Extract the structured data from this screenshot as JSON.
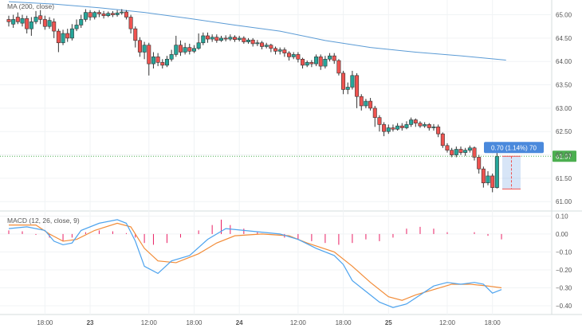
{
  "indicators": {
    "ma_label": "MA (200, close)",
    "macd_label": "MACD (12, 26, close, 9)"
  },
  "price_axis_ticks": [
    "65.00",
    "64.50",
    "64.00",
    "63.50",
    "63.00",
    "62.50",
    "62.00",
    "61.50",
    "61.00"
  ],
  "macd_axis_ticks": [
    "0.10",
    "0.00",
    "−0.10",
    "−0.20",
    "−0.30",
    "−0.40"
  ],
  "time_axis_ticks": [
    "18:00",
    "23",
    "12:00",
    "18:00",
    "24",
    "12:00",
    "18:00",
    "25",
    "12:00",
    "18:00"
  ],
  "last_price_badge": "61.97",
  "measure_label": "0.70 (1.14%) 70",
  "colors": {
    "up": "#26a69a",
    "down": "#ef5350",
    "candle_border": "#333333",
    "ma_line": "#5b9bd5",
    "macd_line": "#4da3ee",
    "signal_line": "#f28c38",
    "histogram": "#e91e63",
    "last_price": "#4caf50",
    "measure": "#4a89dc"
  },
  "chart_data": [
    {
      "type": "candlestick",
      "title": "MA (200, close)",
      "ylim": [
        60.85,
        65.18
      ],
      "x_ticks": [
        "18:00",
        "23",
        "12:00",
        "18:00",
        "24",
        "12:00",
        "18:00",
        "25",
        "12:00",
        "18:00"
      ],
      "x_tick_index": [
        8,
        18,
        31,
        41,
        51,
        64,
        74,
        84,
        97,
        107
      ],
      "candles": [
        [
          64.9,
          64.85,
          64.98,
          64.75
        ],
        [
          64.8,
          64.9,
          65.0,
          64.72
        ],
        [
          64.95,
          64.85,
          65.05,
          64.8
        ],
        [
          64.82,
          64.92,
          65.0,
          64.75
        ],
        [
          64.92,
          64.7,
          64.98,
          64.6
        ],
        [
          64.7,
          64.85,
          64.95,
          64.55
        ],
        [
          64.85,
          64.95,
          65.08,
          64.8
        ],
        [
          64.98,
          64.9,
          65.1,
          64.8
        ],
        [
          64.9,
          64.75,
          64.98,
          64.68
        ],
        [
          64.75,
          64.88,
          64.95,
          64.7
        ],
        [
          64.85,
          64.65,
          64.92,
          64.5
        ],
        [
          64.65,
          64.4,
          64.7,
          64.2
        ],
        [
          64.4,
          64.6,
          64.68,
          64.35
        ],
        [
          64.6,
          64.5,
          64.7,
          64.42
        ],
        [
          64.5,
          64.7,
          64.8,
          64.45
        ],
        [
          64.7,
          64.78,
          64.9,
          64.65
        ],
        [
          64.78,
          64.9,
          65.0,
          64.72
        ],
        [
          64.9,
          65.05,
          65.12,
          64.85
        ],
        [
          65.05,
          64.95,
          65.1,
          64.88
        ],
        [
          64.95,
          65.05,
          65.08,
          64.9
        ],
        [
          65.05,
          65.02,
          65.1,
          64.95
        ],
        [
          65.02,
          64.98,
          65.08,
          64.92
        ],
        [
          64.98,
          65.03,
          65.07,
          64.95
        ],
        [
          65.03,
          65.0,
          65.08,
          64.95
        ],
        [
          65.0,
          65.04,
          65.1,
          64.96
        ],
        [
          65.04,
          65.06,
          65.12,
          65.0
        ],
        [
          65.06,
          64.95,
          65.1,
          64.9
        ],
        [
          64.95,
          64.7,
          65.0,
          64.6
        ],
        [
          64.7,
          64.45,
          64.75,
          64.3
        ],
        [
          64.45,
          64.2,
          64.52,
          64.1
        ],
        [
          64.2,
          64.35,
          64.42,
          64.05
        ],
        [
          64.35,
          63.95,
          64.4,
          63.7
        ],
        [
          63.95,
          64.1,
          64.2,
          63.85
        ],
        [
          64.1,
          63.98,
          64.18,
          63.9
        ],
        [
          63.98,
          63.92,
          64.05,
          63.85
        ],
        [
          63.92,
          64.05,
          64.12,
          63.88
        ],
        [
          64.05,
          64.15,
          64.25,
          64.0
        ],
        [
          64.15,
          64.35,
          64.55,
          64.1
        ],
        [
          64.35,
          64.2,
          64.45,
          64.12
        ],
        [
          64.2,
          64.3,
          64.4,
          64.15
        ],
        [
          64.3,
          64.22,
          64.38,
          64.15
        ],
        [
          64.22,
          64.28,
          64.35,
          64.18
        ],
        [
          64.28,
          64.4,
          64.6,
          64.25
        ],
        [
          64.4,
          64.55,
          64.62,
          64.35
        ],
        [
          64.55,
          64.48,
          64.62,
          64.4
        ],
        [
          64.48,
          64.52,
          64.58,
          64.42
        ],
        [
          64.52,
          64.45,
          64.58,
          64.4
        ],
        [
          64.45,
          64.5,
          64.55,
          64.42
        ],
        [
          64.5,
          64.48,
          64.56,
          64.43
        ],
        [
          64.48,
          64.52,
          64.58,
          64.44
        ],
        [
          64.52,
          64.47,
          64.56,
          64.42
        ],
        [
          64.47,
          64.5,
          64.55,
          64.43
        ],
        [
          64.5,
          64.42,
          64.54,
          64.38
        ],
        [
          64.42,
          64.46,
          64.5,
          64.38
        ],
        [
          64.46,
          64.38,
          64.5,
          64.32
        ],
        [
          64.38,
          64.4,
          64.46,
          64.33
        ],
        [
          64.4,
          64.32,
          64.44,
          64.26
        ],
        [
          64.32,
          64.35,
          64.4,
          64.28
        ],
        [
          64.35,
          64.28,
          64.38,
          64.2
        ],
        [
          64.28,
          64.22,
          64.32,
          64.15
        ],
        [
          64.22,
          64.25,
          64.3,
          64.15
        ],
        [
          64.25,
          64.18,
          64.3,
          64.1
        ],
        [
          64.18,
          64.1,
          64.22,
          64.02
        ],
        [
          64.1,
          64.15,
          64.2,
          64.05
        ],
        [
          64.15,
          64.05,
          64.2,
          63.98
        ],
        [
          64.05,
          63.92,
          64.08,
          63.85
        ],
        [
          63.92,
          63.98,
          64.02,
          63.88
        ],
        [
          63.98,
          63.95,
          64.03,
          63.88
        ],
        [
          63.95,
          64.1,
          64.15,
          63.9
        ],
        [
          64.1,
          63.9,
          64.15,
          63.82
        ],
        [
          63.9,
          64.05,
          64.12,
          63.85
        ],
        [
          64.05,
          64.12,
          64.18,
          64.0
        ],
        [
          64.12,
          64.02,
          64.18,
          63.95
        ],
        [
          64.02,
          63.75,
          64.05,
          63.7
        ],
        [
          63.75,
          63.4,
          63.8,
          63.3
        ],
        [
          63.4,
          63.45,
          63.55,
          63.3
        ],
        [
          63.45,
          63.7,
          63.8,
          63.4
        ],
        [
          63.7,
          63.25,
          63.75,
          63.0
        ],
        [
          63.25,
          63.05,
          63.3,
          62.95
        ],
        [
          63.05,
          63.15,
          63.2,
          63.0
        ],
        [
          63.15,
          63.0,
          63.22,
          62.95
        ],
        [
          63.0,
          62.8,
          63.05,
          62.6
        ],
        [
          62.8,
          62.65,
          62.85,
          62.5
        ],
        [
          62.65,
          62.5,
          62.7,
          62.4
        ],
        [
          62.5,
          62.58,
          62.65,
          62.45
        ],
        [
          62.58,
          62.55,
          62.65,
          62.5
        ],
        [
          62.55,
          62.62,
          62.68,
          62.52
        ],
        [
          62.62,
          62.58,
          62.68,
          62.52
        ],
        [
          62.58,
          62.65,
          62.72,
          62.55
        ],
        [
          62.65,
          62.75,
          62.8,
          62.6
        ],
        [
          62.75,
          62.68,
          62.78,
          62.6
        ],
        [
          62.68,
          62.62,
          62.72,
          62.58
        ],
        [
          62.62,
          62.65,
          62.7,
          62.58
        ],
        [
          62.65,
          62.58,
          62.68,
          62.52
        ],
        [
          62.58,
          62.6,
          62.66,
          62.52
        ],
        [
          62.6,
          62.45,
          62.65,
          62.38
        ],
        [
          62.45,
          62.2,
          62.48,
          62.15
        ],
        [
          62.2,
          62.1,
          62.25,
          62.05
        ],
        [
          62.1,
          62.0,
          62.15,
          61.95
        ],
        [
          62.0,
          62.12,
          62.18,
          61.95
        ],
        [
          62.12,
          62.05,
          62.18,
          62.0
        ],
        [
          62.05,
          62.1,
          62.15,
          61.98
        ],
        [
          62.1,
          62.15,
          62.2,
          62.05
        ],
        [
          62.15,
          61.95,
          62.18,
          61.88
        ],
        [
          61.95,
          61.7,
          62.0,
          61.6
        ],
        [
          61.7,
          61.4,
          61.75,
          61.3
        ],
        [
          61.4,
          61.55,
          61.65,
          61.35
        ],
        [
          61.55,
          61.3,
          61.6,
          61.2
        ],
        [
          61.3,
          61.97,
          62.05,
          61.28
        ]
      ],
      "ma": [
        [
          0,
          65.28
        ],
        [
          10,
          65.23
        ],
        [
          20,
          65.15
        ],
        [
          30,
          65.05
        ],
        [
          40,
          64.92
        ],
        [
          50,
          64.78
        ],
        [
          60,
          64.65
        ],
        [
          70,
          64.45
        ],
        [
          80,
          64.3
        ],
        [
          90,
          64.2
        ],
        [
          100,
          64.12
        ],
        [
          110,
          64.03
        ]
      ],
      "last_price": 61.97,
      "measure": {
        "from": 61.27,
        "to": 61.97,
        "change": 0.7,
        "percent": 1.14,
        "bars": 70
      }
    },
    {
      "type": "macd",
      "title": "MACD (12, 26, close, 9)",
      "ylim": [
        -0.44,
        0.115
      ],
      "macd": [
        [
          0,
          0.03
        ],
        [
          4,
          0.04
        ],
        [
          8,
          0.02
        ],
        [
          10,
          -0.04
        ],
        [
          12,
          -0.06
        ],
        [
          14,
          -0.05
        ],
        [
          16,
          0.02
        ],
        [
          20,
          0.06
        ],
        [
          24,
          0.08
        ],
        [
          26,
          0.06
        ],
        [
          28,
          -0.04
        ],
        [
          30,
          -0.18
        ],
        [
          33,
          -0.22
        ],
        [
          36,
          -0.15
        ],
        [
          40,
          -0.12
        ],
        [
          44,
          -0.03
        ],
        [
          48,
          0.03
        ],
        [
          52,
          0.02
        ],
        [
          56,
          0.01
        ],
        [
          60,
          0.0
        ],
        [
          64,
          -0.03
        ],
        [
          68,
          -0.08
        ],
        [
          72,
          -0.12
        ],
        [
          74,
          -0.17
        ],
        [
          76,
          -0.26
        ],
        [
          79,
          -0.32
        ],
        [
          82,
          -0.38
        ],
        [
          85,
          -0.41
        ],
        [
          88,
          -0.39
        ],
        [
          91,
          -0.34
        ],
        [
          94,
          -0.29
        ],
        [
          97,
          -0.27
        ],
        [
          100,
          -0.28
        ],
        [
          103,
          -0.27
        ],
        [
          105,
          -0.28
        ],
        [
          107,
          -0.33
        ],
        [
          109,
          -0.31
        ]
      ],
      "signal": [
        [
          0,
          0.05
        ],
        [
          6,
          0.05
        ],
        [
          9,
          0.0
        ],
        [
          12,
          -0.04
        ],
        [
          15,
          -0.03
        ],
        [
          19,
          0.02
        ],
        [
          24,
          0.06
        ],
        [
          27,
          0.04
        ],
        [
          30,
          -0.08
        ],
        [
          33,
          -0.15
        ],
        [
          37,
          -0.16
        ],
        [
          42,
          -0.11
        ],
        [
          46,
          -0.05
        ],
        [
          50,
          -0.01
        ],
        [
          56,
          0.0
        ],
        [
          62,
          -0.01
        ],
        [
          66,
          -0.05
        ],
        [
          72,
          -0.1
        ],
        [
          76,
          -0.18
        ],
        [
          80,
          -0.27
        ],
        [
          84,
          -0.35
        ],
        [
          87,
          -0.37
        ],
        [
          90,
          -0.34
        ],
        [
          94,
          -0.31
        ],
        [
          98,
          -0.28
        ],
        [
          102,
          -0.28
        ],
        [
          106,
          -0.29
        ],
        [
          109,
          -0.3
        ]
      ],
      "histogram": [
        [
          0,
          0.02
        ],
        [
          3,
          0.015
        ],
        [
          6,
          -0.005
        ],
        [
          9,
          -0.02
        ],
        [
          12,
          -0.04
        ],
        [
          14,
          -0.02
        ],
        [
          17,
          0.01
        ],
        [
          20,
          0.02
        ],
        [
          23,
          0.015
        ],
        [
          26,
          0.005
        ],
        [
          28,
          -0.02
        ],
        [
          30,
          -0.05
        ],
        [
          32,
          -0.06
        ],
        [
          35,
          -0.05
        ],
        [
          38,
          -0.02
        ],
        [
          40,
          0.0
        ],
        [
          42,
          0.02
        ],
        [
          45,
          0.05
        ],
        [
          47,
          0.08
        ],
        [
          49,
          0.05
        ],
        [
          52,
          0.03
        ],
        [
          55,
          0.01
        ],
        [
          58,
          0.0
        ],
        [
          61,
          -0.02
        ],
        [
          64,
          -0.03
        ],
        [
          67,
          -0.04
        ],
        [
          70,
          -0.05
        ],
        [
          73,
          -0.06
        ],
        [
          76,
          -0.05
        ],
        [
          79,
          -0.03
        ],
        [
          82,
          -0.04
        ],
        [
          85,
          -0.02
        ],
        [
          88,
          0.03
        ],
        [
          91,
          0.04
        ],
        [
          94,
          0.03
        ],
        [
          97,
          0.01
        ],
        [
          100,
          0.0
        ],
        [
          103,
          0.01
        ],
        [
          106,
          -0.01
        ],
        [
          109,
          -0.03
        ]
      ]
    }
  ]
}
